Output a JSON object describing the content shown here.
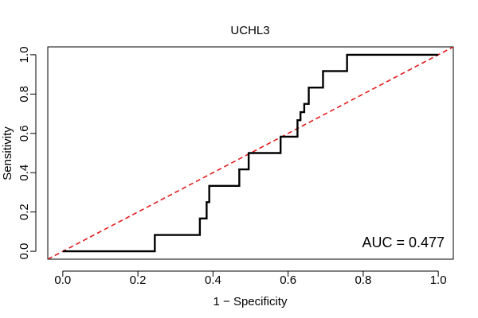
{
  "chart_data": {
    "type": "line",
    "title": "UCHL3",
    "xlabel": "1 − Specificity",
    "ylabel": "Sensitivity",
    "xlim": [
      -0.04,
      1.04
    ],
    "ylim": [
      -0.04,
      1.04
    ],
    "xticks": [
      "0.0",
      "0.2",
      "0.4",
      "0.6",
      "0.8",
      "1.0"
    ],
    "yticks": [
      "0.0",
      "0.2",
      "0.4",
      "0.6",
      "0.8",
      "1.0"
    ],
    "grid": false,
    "annotation": "AUC = 0.477",
    "series": [
      {
        "kind": "roc-curve",
        "color": "#000000",
        "style": "solid",
        "x": [
          0.0,
          0.245,
          0.245,
          0.365,
          0.365,
          0.383,
          0.383,
          0.39,
          0.39,
          0.47,
          0.47,
          0.495,
          0.495,
          0.58,
          0.58,
          0.625,
          0.625,
          0.633,
          0.633,
          0.643,
          0.643,
          0.655,
          0.655,
          0.693,
          0.693,
          0.757,
          0.757,
          1.0
        ],
        "y": [
          0.0,
          0.0,
          0.083,
          0.083,
          0.167,
          0.167,
          0.25,
          0.25,
          0.333,
          0.333,
          0.417,
          0.417,
          0.5,
          0.5,
          0.583,
          0.583,
          0.667,
          0.667,
          0.708,
          0.708,
          0.75,
          0.75,
          0.833,
          0.833,
          0.917,
          0.917,
          1.0,
          1.0
        ]
      },
      {
        "kind": "reference-diagonal",
        "color": "#e31a1c",
        "style": "dashed",
        "x": [
          -0.04,
          1.04
        ],
        "y": [
          -0.04,
          1.04
        ]
      }
    ]
  }
}
